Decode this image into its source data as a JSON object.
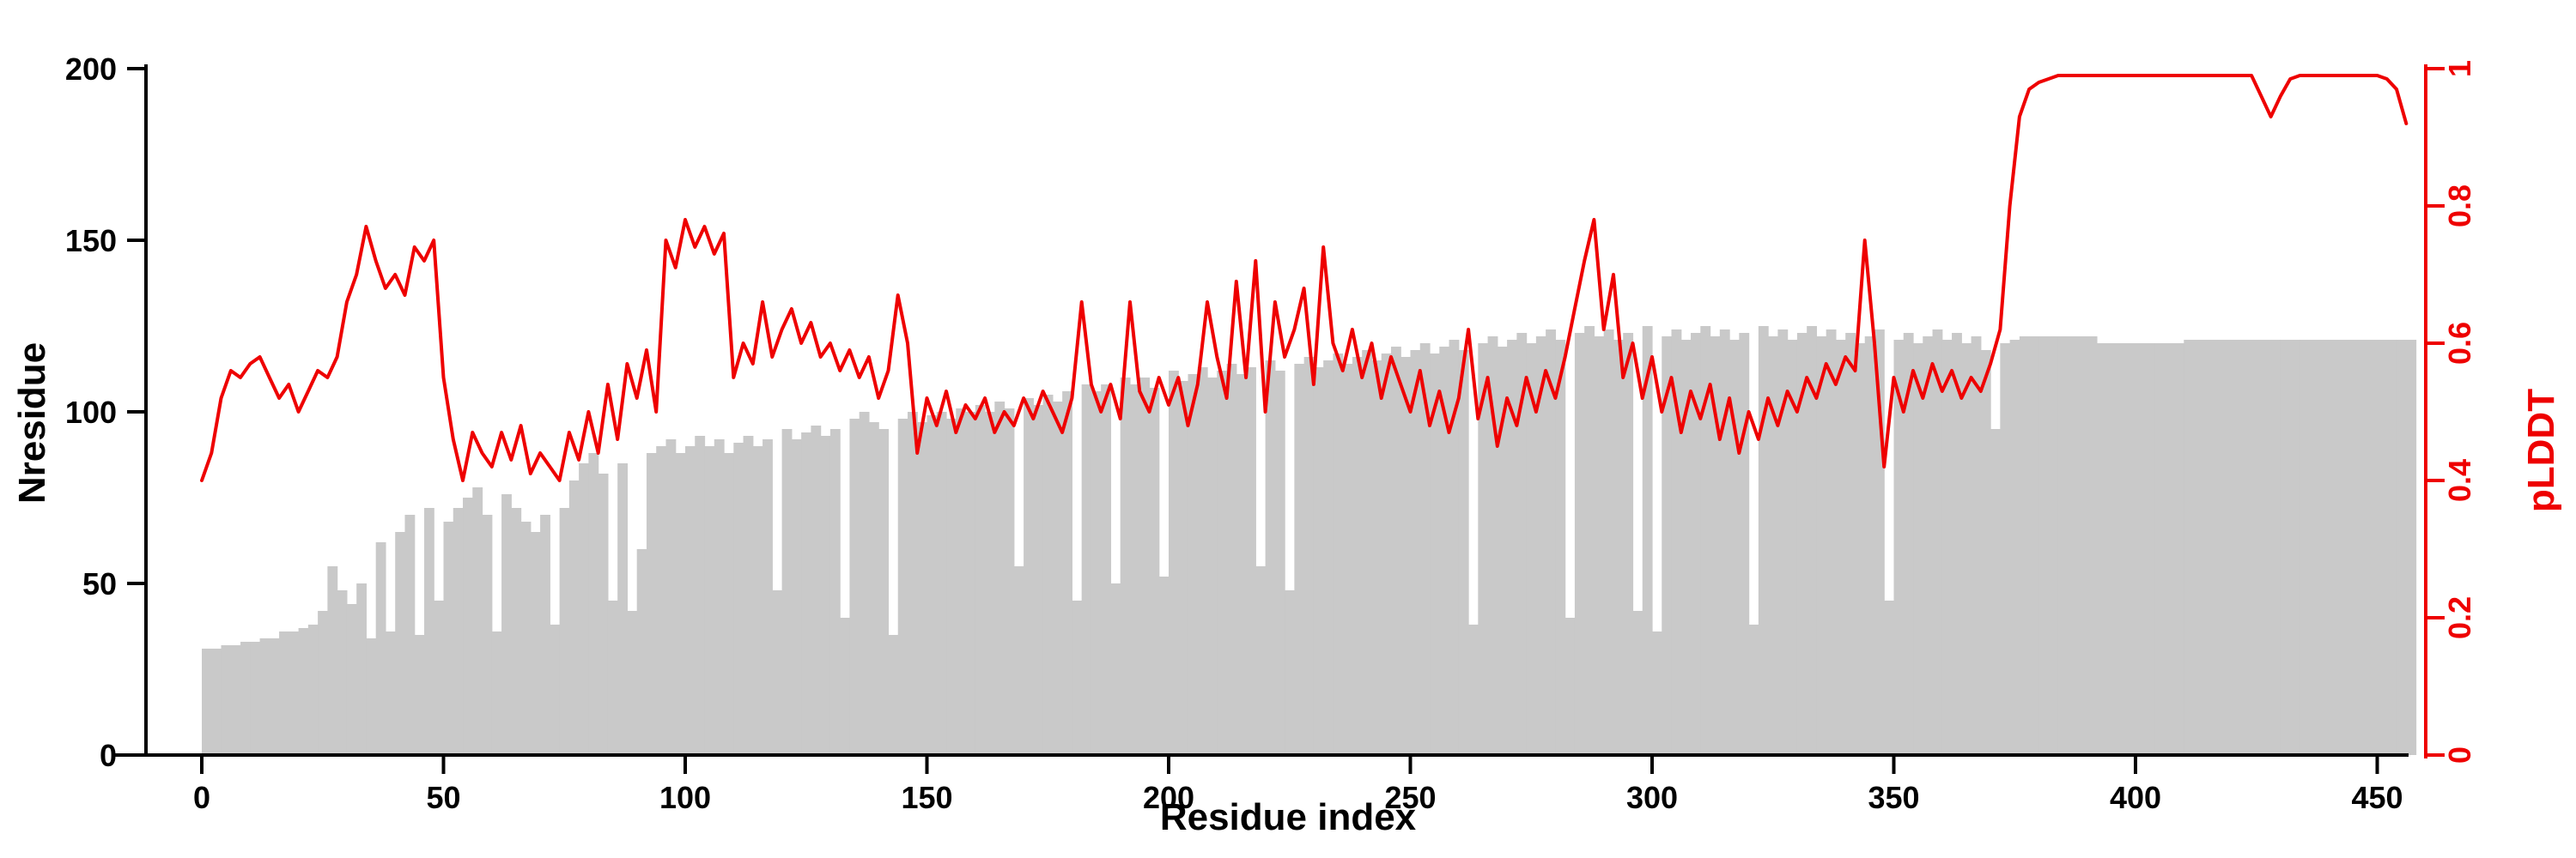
{
  "figure": {
    "x_axis_title": "Residue index",
    "left_axis_title": "Nresidue",
    "right_axis_title": "pLDDT",
    "colors": {
      "bar_fill": "#c9c9c9",
      "line": "#ee0000",
      "left_axis": "#000000",
      "right_axis": "#ee0000",
      "background": "#ffffff"
    }
  },
  "chart_data": {
    "type": "bar",
    "title": "",
    "xlabel": "Residue index",
    "x_start": 0,
    "x_step": 2,
    "x_range": [
      0,
      460
    ],
    "x_ticks": [
      0,
      50,
      100,
      150,
      200,
      250,
      300,
      350,
      400,
      450
    ],
    "left_axis": {
      "label": "Nresidue",
      "range": [
        0,
        200
      ],
      "ticks": [
        0,
        50,
        100,
        150,
        200
      ]
    },
    "right_axis": {
      "label": "pLDDT",
      "range": [
        0,
        1
      ],
      "ticks": [
        0,
        0.2,
        0.4,
        0.6,
        0.8,
        1
      ]
    },
    "grid": false,
    "legend": "none",
    "series": [
      {
        "name": "Nresidue",
        "type": "bar",
        "axis": "left",
        "color": "#c9c9c9",
        "values": [
          31,
          31,
          32,
          32,
          33,
          33,
          34,
          34,
          36,
          36,
          37,
          38,
          42,
          55,
          48,
          44,
          50,
          34,
          62,
          36,
          65,
          70,
          35,
          72,
          45,
          68,
          72,
          75,
          78,
          70,
          36,
          76,
          72,
          68,
          65,
          70,
          38,
          72,
          80,
          85,
          88,
          82,
          45,
          85,
          42,
          60,
          88,
          90,
          92,
          88,
          90,
          93,
          90,
          92,
          88,
          91,
          93,
          90,
          92,
          48,
          95,
          92,
          94,
          96,
          93,
          95,
          40,
          98,
          100,
          97,
          95,
          35,
          98,
          100,
          97,
          99,
          100,
          98,
          101,
          100,
          102,
          100,
          103,
          101,
          55,
          104,
          102,
          105,
          103,
          106,
          45,
          108,
          106,
          108,
          50,
          110,
          108,
          110,
          107,
          52,
          112,
          109,
          111,
          113,
          110,
          112,
          114,
          111,
          113,
          55,
          115,
          112,
          48,
          114,
          116,
          113,
          115,
          117,
          114,
          116,
          118,
          115,
          117,
          119,
          116,
          118,
          120,
          117,
          119,
          121,
          118,
          38,
          120,
          122,
          119,
          121,
          123,
          120,
          122,
          124,
          121,
          40,
          123,
          125,
          122,
          124,
          121,
          123,
          42,
          125,
          36,
          122,
          124,
          121,
          123,
          125,
          122,
          124,
          121,
          123,
          38,
          125,
          122,
          124,
          121,
          123,
          125,
          122,
          124,
          121,
          123,
          120,
          122,
          124,
          45,
          121,
          123,
          120,
          122,
          124,
          121,
          123,
          120,
          122,
          118,
          95,
          120,
          121,
          122,
          122,
          122,
          122,
          122,
          122,
          122,
          122,
          120,
          120,
          120,
          120,
          120,
          120,
          120,
          120,
          120,
          121,
          121,
          121,
          121,
          121,
          121,
          121,
          121,
          121,
          121,
          121,
          121,
          121,
          121,
          121,
          121,
          121,
          121,
          121,
          121,
          121,
          121,
          121,
          121
        ]
      },
      {
        "name": "pLDDT",
        "type": "line",
        "axis": "right",
        "color": "#ee0000",
        "values": [
          0.4,
          0.44,
          0.52,
          0.56,
          0.55,
          0.57,
          0.58,
          0.55,
          0.52,
          0.54,
          0.5,
          0.53,
          0.56,
          0.55,
          0.58,
          0.66,
          0.7,
          0.77,
          0.72,
          0.68,
          0.7,
          0.67,
          0.74,
          0.72,
          0.75,
          0.55,
          0.46,
          0.4,
          0.47,
          0.44,
          0.42,
          0.47,
          0.43,
          0.48,
          0.41,
          0.44,
          0.42,
          0.4,
          0.47,
          0.43,
          0.5,
          0.44,
          0.54,
          0.46,
          0.57,
          0.52,
          0.59,
          0.5,
          0.75,
          0.71,
          0.78,
          0.74,
          0.77,
          0.73,
          0.76,
          0.55,
          0.6,
          0.57,
          0.66,
          0.58,
          0.62,
          0.65,
          0.6,
          0.63,
          0.58,
          0.6,
          0.56,
          0.59,
          0.55,
          0.58,
          0.52,
          0.56,
          0.67,
          0.6,
          0.44,
          0.52,
          0.48,
          0.53,
          0.47,
          0.51,
          0.49,
          0.52,
          0.47,
          0.5,
          0.48,
          0.52,
          0.49,
          0.53,
          0.5,
          0.47,
          0.52,
          0.66,
          0.54,
          0.5,
          0.54,
          0.49,
          0.66,
          0.53,
          0.5,
          0.55,
          0.51,
          0.55,
          0.48,
          0.54,
          0.66,
          0.58,
          0.52,
          0.69,
          0.55,
          0.72,
          0.5,
          0.66,
          0.58,
          0.62,
          0.68,
          0.54,
          0.74,
          0.6,
          0.56,
          0.62,
          0.55,
          0.6,
          0.52,
          0.58,
          0.54,
          0.5,
          0.56,
          0.48,
          0.53,
          0.47,
          0.52,
          0.62,
          0.49,
          0.55,
          0.45,
          0.52,
          0.48,
          0.55,
          0.5,
          0.56,
          0.52,
          0.58,
          0.65,
          0.72,
          0.78,
          0.62,
          0.7,
          0.55,
          0.6,
          0.52,
          0.58,
          0.5,
          0.55,
          0.47,
          0.53,
          0.49,
          0.54,
          0.46,
          0.52,
          0.44,
          0.5,
          0.46,
          0.52,
          0.48,
          0.53,
          0.5,
          0.55,
          0.52,
          0.57,
          0.54,
          0.58,
          0.56,
          0.75,
          0.6,
          0.42,
          0.55,
          0.5,
          0.56,
          0.52,
          0.57,
          0.53,
          0.56,
          0.52,
          0.55,
          0.53,
          0.57,
          0.62,
          0.8,
          0.93,
          0.97,
          0.98,
          0.985,
          0.99,
          0.99,
          0.99,
          0.99,
          0.99,
          0.99,
          0.99,
          0.99,
          0.99,
          0.99,
          0.99,
          0.99,
          0.99,
          0.99,
          0.99,
          0.99,
          0.99,
          0.99,
          0.99,
          0.99,
          0.99,
          0.96,
          0.93,
          0.96,
          0.985,
          0.99,
          0.99,
          0.99,
          0.99,
          0.99,
          0.99,
          0.99,
          0.99,
          0.99,
          0.985,
          0.97,
          0.92
        ]
      }
    ]
  }
}
